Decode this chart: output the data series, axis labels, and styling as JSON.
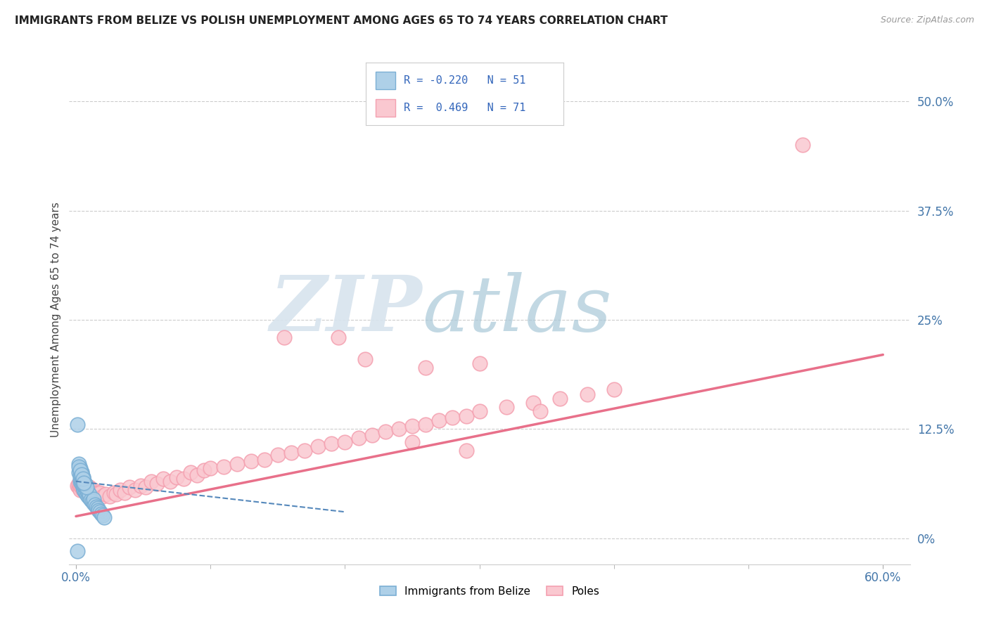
{
  "title": "IMMIGRANTS FROM BELIZE VS POLISH UNEMPLOYMENT AMONG AGES 65 TO 74 YEARS CORRELATION CHART",
  "source": "Source: ZipAtlas.com",
  "ylabel": "Unemployment Among Ages 65 to 74 years",
  "xlim": [
    -0.005,
    0.62
  ],
  "ylim": [
    -0.03,
    0.53
  ],
  "yticks": [
    0.0,
    0.125,
    0.25,
    0.375,
    0.5
  ],
  "ytick_labels": [
    "0%",
    "12.5%",
    "25%",
    "37.5%",
    "50.0%"
  ],
  "xticks": [
    0.0,
    0.6
  ],
  "xtick_labels": [
    "0.0%",
    "60.0%"
  ],
  "grid_color": "#cccccc",
  "background_color": "#ffffff",
  "watermark_zip": "ZIP",
  "watermark_atlas": "atlas",
  "blue_color": "#7BAFD4",
  "blue_fill": "#AED0E8",
  "pink_color": "#F4A0B0",
  "pink_fill": "#FAC8D0",
  "blue_line_color": "#5588BB",
  "pink_line_color": "#E8708A",
  "blue_scatter_x": [
    0.001,
    0.002,
    0.002,
    0.003,
    0.003,
    0.003,
    0.003,
    0.004,
    0.004,
    0.004,
    0.004,
    0.005,
    0.005,
    0.005,
    0.005,
    0.006,
    0.006,
    0.006,
    0.007,
    0.007,
    0.007,
    0.008,
    0.008,
    0.009,
    0.009,
    0.01,
    0.01,
    0.011,
    0.012,
    0.013,
    0.013,
    0.014,
    0.015,
    0.016,
    0.017,
    0.018,
    0.019,
    0.02,
    0.021,
    0.003,
    0.004,
    0.005,
    0.006,
    0.007,
    0.008,
    0.002,
    0.003,
    0.004,
    0.005,
    0.006,
    0.001
  ],
  "blue_scatter_y": [
    0.13,
    0.075,
    0.085,
    0.065,
    0.068,
    0.072,
    0.078,
    0.062,
    0.066,
    0.07,
    0.075,
    0.058,
    0.062,
    0.066,
    0.07,
    0.055,
    0.06,
    0.064,
    0.053,
    0.058,
    0.062,
    0.05,
    0.055,
    0.048,
    0.053,
    0.046,
    0.05,
    0.044,
    0.042,
    0.04,
    0.045,
    0.038,
    0.036,
    0.034,
    0.032,
    0.03,
    0.028,
    0.026,
    0.024,
    0.08,
    0.075,
    0.07,
    0.065,
    0.062,
    0.058,
    0.082,
    0.078,
    0.073,
    0.068,
    0.063,
    -0.015
  ],
  "pink_scatter_x": [
    0.001,
    0.002,
    0.002,
    0.003,
    0.003,
    0.004,
    0.004,
    0.005,
    0.005,
    0.006,
    0.006,
    0.007,
    0.008,
    0.008,
    0.009,
    0.01,
    0.011,
    0.012,
    0.013,
    0.014,
    0.015,
    0.016,
    0.017,
    0.018,
    0.02,
    0.022,
    0.025,
    0.028,
    0.03,
    0.033,
    0.036,
    0.04,
    0.044,
    0.048,
    0.052,
    0.056,
    0.06,
    0.065,
    0.07,
    0.075,
    0.08,
    0.085,
    0.09,
    0.095,
    0.1,
    0.11,
    0.12,
    0.13,
    0.14,
    0.15,
    0.16,
    0.17,
    0.18,
    0.19,
    0.2,
    0.21,
    0.22,
    0.23,
    0.24,
    0.25,
    0.26,
    0.27,
    0.28,
    0.29,
    0.3,
    0.32,
    0.34,
    0.36,
    0.38,
    0.4,
    0.54
  ],
  "pink_scatter_y": [
    0.06,
    0.058,
    0.062,
    0.055,
    0.06,
    0.058,
    0.062,
    0.055,
    0.06,
    0.055,
    0.06,
    0.058,
    0.055,
    0.06,
    0.055,
    0.058,
    0.055,
    0.052,
    0.055,
    0.052,
    0.05,
    0.052,
    0.05,
    0.052,
    0.048,
    0.05,
    0.048,
    0.052,
    0.05,
    0.055,
    0.052,
    0.058,
    0.055,
    0.06,
    0.058,
    0.065,
    0.062,
    0.068,
    0.065,
    0.07,
    0.068,
    0.075,
    0.072,
    0.078,
    0.08,
    0.082,
    0.085,
    0.088,
    0.09,
    0.095,
    0.098,
    0.1,
    0.105,
    0.108,
    0.11,
    0.115,
    0.118,
    0.122,
    0.125,
    0.128,
    0.13,
    0.135,
    0.138,
    0.14,
    0.145,
    0.15,
    0.155,
    0.16,
    0.165,
    0.17,
    0.45
  ],
  "pink_scatter_outliers_x": [
    0.155,
    0.195,
    0.215,
    0.26,
    0.3,
    0.345,
    0.25,
    0.29
  ],
  "pink_scatter_outliers_y": [
    0.23,
    0.23,
    0.205,
    0.195,
    0.2,
    0.145,
    0.11,
    0.1
  ],
  "blue_trend_x": [
    0.0,
    0.2
  ],
  "blue_trend_y": [
    0.065,
    0.03
  ],
  "pink_trend_x": [
    0.0,
    0.6
  ],
  "pink_trend_y": [
    0.025,
    0.21
  ]
}
